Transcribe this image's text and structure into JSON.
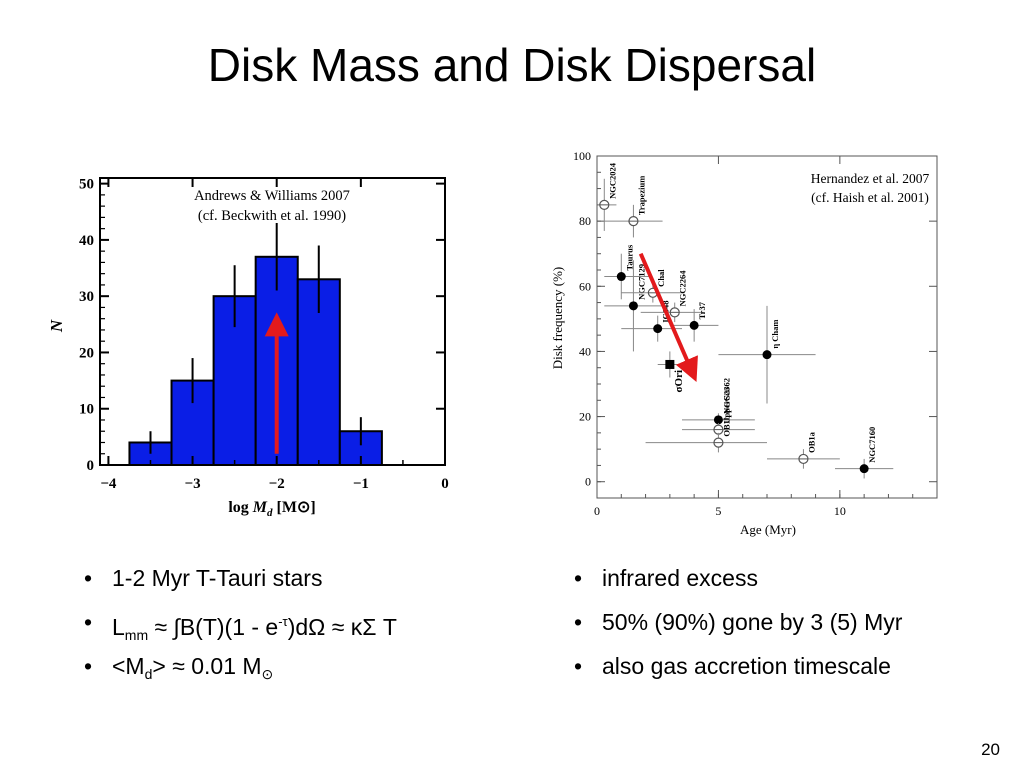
{
  "slide": {
    "title": "Disk Mass and Disk Dispersal",
    "page_number": "20"
  },
  "bullets_left": {
    "item1": "1-2 Myr T-Tauri stars",
    "item2": {
      "l": "L",
      "sub": "mm",
      "p1": " ≈ ∫B(T)(1 - e",
      "sup": "-τ",
      "p2": ")dΩ ≈ κΣ T"
    },
    "item3": {
      "p1": "<M",
      "sub": "d",
      "p2": "> ≈ 0.01 M",
      "sun": "⊙"
    }
  },
  "bullets_right": {
    "item1": "infrared excess",
    "item2": "50% (90%) gone by 3 (5) Myr",
    "item3": "also gas accretion timescale"
  },
  "chart_data": [
    {
      "type": "bar",
      "annotation": [
        "Andrews & Williams 2007",
        "(cf. Beckwith et al. 1990)"
      ],
      "xlabel": {
        "pre": "log ",
        "var": "M",
        "sub": "d",
        "unit": " [M",
        "sun": "⊙",
        "close": "]"
      },
      "ylabel": "N",
      "xlim": [
        -4.1,
        0
      ],
      "ylim": [
        0,
        51
      ],
      "xticks": [
        "−4",
        "−3",
        "−2",
        "−1",
        "0"
      ],
      "yticks": [
        "0",
        "10",
        "20",
        "30",
        "40",
        "50"
      ],
      "bin_edges": [
        -3.75,
        -3.25,
        -2.75,
        -2.25,
        -1.75,
        -1.25,
        -0.75
      ],
      "values": [
        4,
        15,
        30,
        37,
        33,
        6
      ],
      "errors": [
        2,
        4,
        5.5,
        6,
        6,
        2.5
      ],
      "fill_color": "#0a1ee6",
      "arrow": {
        "x": -2,
        "from": 2,
        "to": 25,
        "color": "#e31a1c"
      }
    },
    {
      "type": "scatter",
      "annotation": [
        "Hernandez et al. 2007",
        "(cf. Haish et al. 2001)"
      ],
      "xlabel": "Age (Myr)",
      "ylabel": "Disk frequency (%)",
      "xlim": [
        0,
        14
      ],
      "ylim": [
        -5,
        100
      ],
      "xticks": [
        "0",
        "5",
        "10"
      ],
      "yticks": [
        "0",
        "20",
        "40",
        "60",
        "80",
        "100"
      ],
      "points": [
        {
          "label": "NGC2024",
          "x": 0.3,
          "y": 85,
          "marker": "open",
          "xerr": [
            0.3,
            0.5
          ],
          "yerr": 8
        },
        {
          "label": "Trapezium",
          "x": 1.5,
          "y": 80,
          "marker": "open",
          "xerr": [
            1.2,
            1.2
          ],
          "yerr": 5
        },
        {
          "label": "Taurus",
          "x": 1.0,
          "y": 63,
          "marker": "filled",
          "xerr": [
            0.7,
            1.2
          ],
          "yerr": 7
        },
        {
          "label": "NGC7129",
          "x": 1.5,
          "y": 54,
          "marker": "filled",
          "xerr": [
            1.2,
            1.3
          ],
          "yerr": 14
        },
        {
          "label": "Chal",
          "x": 2.3,
          "y": 58,
          "marker": "open",
          "xerr": [
            1.3,
            1.3
          ],
          "yerr": 3
        },
        {
          "label": "IC348",
          "x": 2.5,
          "y": 47,
          "marker": "filled",
          "xerr": [
            1.5,
            1.0
          ],
          "yerr": 4
        },
        {
          "label": "NGC2264",
          "x": 3.2,
          "y": 52,
          "marker": "open",
          "xerr": [
            1.4,
            1.2
          ],
          "yerr": 3
        },
        {
          "label": "Tr37",
          "x": 4.0,
          "y": 48,
          "marker": "filled",
          "xerr": [
            1.0,
            1.0
          ],
          "yerr": 5
        },
        {
          "label": "σOri",
          "x": 3.0,
          "y": 36,
          "marker": "square",
          "xerr": [
            0.5,
            0.5
          ],
          "yerr": 4
        },
        {
          "label": "NGC2362",
          "x": 5.0,
          "y": 19,
          "marker": "filled",
          "xerr": [
            1.5,
            1.5
          ],
          "yerr": 2
        },
        {
          "label": "UpperSco",
          "x": 5.0,
          "y": 16,
          "marker": "open",
          "xerr": [
            1.5,
            1.5
          ],
          "yerr": 2
        },
        {
          "label": "OB1b",
          "x": 5.0,
          "y": 12,
          "marker": "open",
          "xerr": [
            3.0,
            2.0
          ],
          "yerr": 3
        },
        {
          "label": "η Cham",
          "x": 7.0,
          "y": 39,
          "marker": "filled",
          "xerr": [
            2.0,
            2.0
          ],
          "yerr": 15
        },
        {
          "label": "OB1a",
          "x": 8.5,
          "y": 7,
          "marker": "open",
          "xerr": [
            1.5,
            1.5
          ],
          "yerr": 3
        },
        {
          "label": "NGC7160",
          "x": 11.0,
          "y": 4,
          "marker": "filled",
          "xerr": [
            1.2,
            1.2
          ],
          "yerr": 3
        }
      ],
      "arrow": {
        "from": [
          1.8,
          70
        ],
        "to": [
          3.9,
          34
        ],
        "color": "#e31a1c"
      }
    }
  ]
}
